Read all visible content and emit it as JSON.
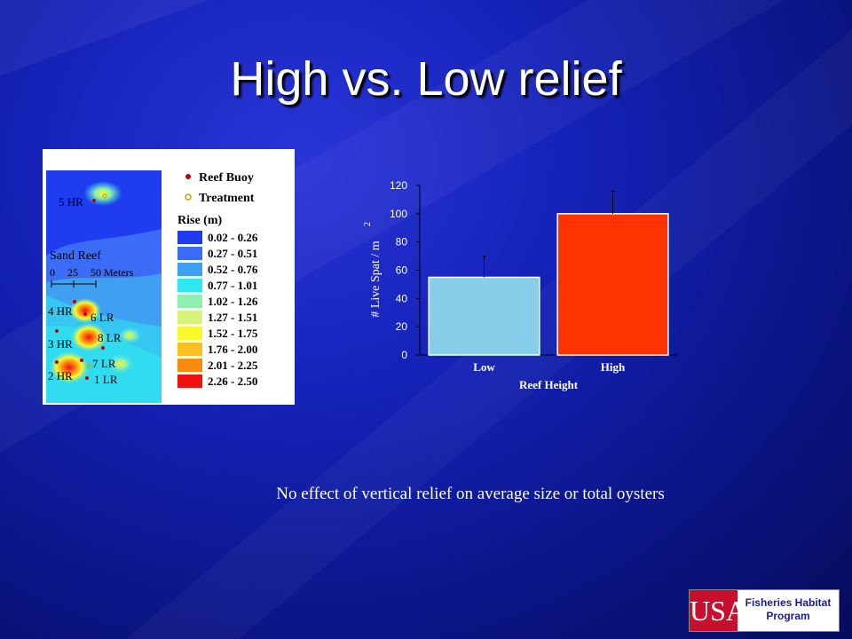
{
  "slide": {
    "title": "High vs. Low relief",
    "caption": "No effect of vertical relief on average size or total oysters"
  },
  "map": {
    "legend_markers": [
      {
        "label": "Reef Buoy",
        "color": "#c00000"
      },
      {
        "label": "Treatment",
        "color": "#c8a000"
      }
    ],
    "rise_title": "Rise (m)",
    "rise_classes": [
      {
        "label": "0.02 - 0.26",
        "color": "#1f3cf0"
      },
      {
        "label": "0.27 - 0.51",
        "color": "#3a6cf5"
      },
      {
        "label": "0.52 - 0.76",
        "color": "#3fa0f2"
      },
      {
        "label": "0.77 - 1.01",
        "color": "#2ee8f0"
      },
      {
        "label": "1.02 - 1.26",
        "color": "#8ef0b0"
      },
      {
        "label": "1.27 - 1.51",
        "color": "#d6f27a"
      },
      {
        "label": "1.52 - 1.75",
        "color": "#f8f82a"
      },
      {
        "label": "1.76 - 2.00",
        "color": "#f8c020"
      },
      {
        "label": "2.01 - 2.25",
        "color": "#f88a10"
      },
      {
        "label": "2.26 - 2.50",
        "color": "#f01010"
      }
    ],
    "reef_name": "Sand Reef",
    "scale": {
      "ticks": [
        "0",
        "25",
        "50 Meters"
      ]
    },
    "plot_labels": [
      "5 HR",
      "4 HR",
      "6 LR",
      "3 HR",
      "8 LR",
      "7 LR",
      "2 HR",
      "1 LR"
    ]
  },
  "chart_data": {
    "type": "bar",
    "categories": [
      "Low",
      "High"
    ],
    "values": [
      55,
      100
    ],
    "error_upper": [
      70,
      116
    ],
    "colors": [
      "#87ceeb",
      "#ff3300"
    ],
    "xlabel": "Reef Height",
    "ylabel": "# Live Spat / m",
    "ylabel_superscript": "2",
    "ylim": [
      0,
      120
    ],
    "yticks": [
      0,
      20,
      40,
      60,
      80,
      100,
      120
    ]
  },
  "logo": {
    "mark": "USA",
    "line1": "Fisheries Habitat",
    "line2": "Program"
  }
}
